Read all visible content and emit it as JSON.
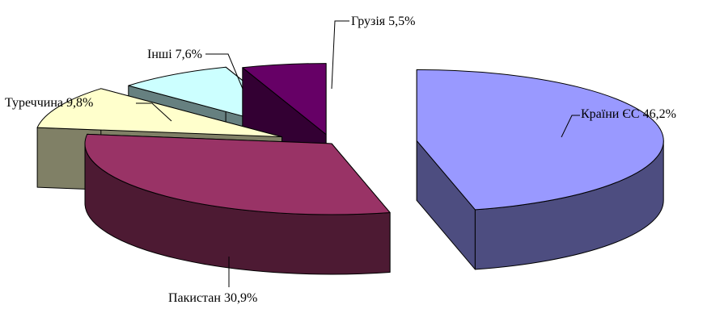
{
  "chart_data": {
    "type": "pie",
    "style": "3d-exploded",
    "unit": "%",
    "title": "",
    "slices": [
      {
        "label": "Країни ЄС 46,2%",
        "category": "Країни ЄС",
        "value": 46.2,
        "color": "#9999ff",
        "side_color": "#4d4d80"
      },
      {
        "label": "Пакистан 30,9%",
        "category": "Пакистан",
        "value": 30.9,
        "color": "#993366",
        "side_color": "#4d1a33"
      },
      {
        "label": "Туреччина 9,8%",
        "category": "Туреччина",
        "value": 9.8,
        "color": "#ffffcc",
        "side_color": "#808066"
      },
      {
        "label": "Інші 7,6%",
        "category": "Інші",
        "value": 7.6,
        "color": "#ccffff",
        "side_color": "#668080"
      },
      {
        "label": "Грузія 5,5%",
        "category": "Грузія",
        "value": 5.5,
        "color": "#660066",
        "side_color": "#330033"
      }
    ],
    "legend": "none"
  }
}
